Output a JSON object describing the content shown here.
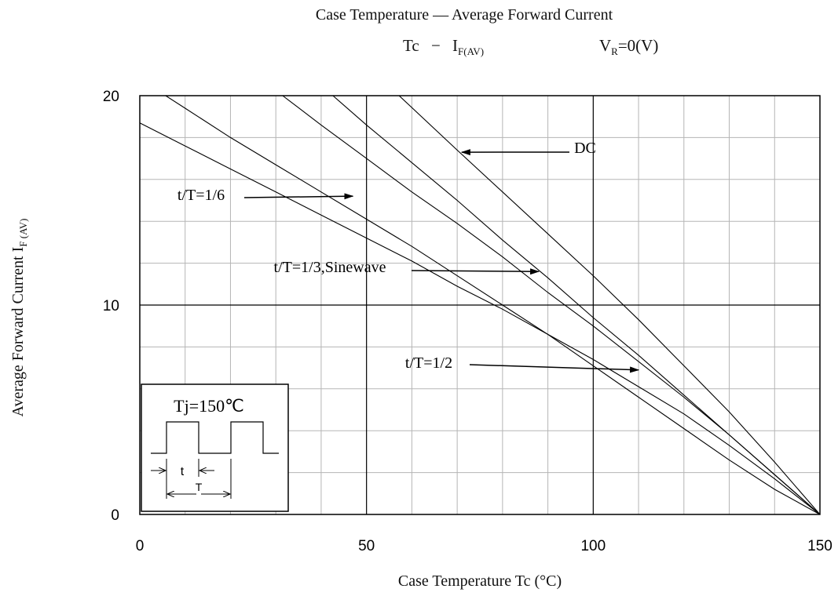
{
  "chart_data": {
    "type": "line",
    "title": "Case Temperature — Average Forward Current",
    "subtitle": {
      "left": "Tc",
      "dash": "−",
      "i_main": "I",
      "i_sub": "F(AV)",
      "v_main": "V",
      "v_sub": "R",
      "v_rest": "=0(V)"
    },
    "xlabel": "Case Temperature Tc (°C)",
    "ylabel_main": "Average Forward Current I",
    "ylabel_sub": "F (AV)",
    "xlim": [
      0,
      150
    ],
    "ylim": [
      0,
      20
    ],
    "xticks": [
      0,
      50,
      100,
      150
    ],
    "yticks": [
      0,
      10,
      20
    ],
    "grid": true,
    "series": [
      {
        "name": "DC",
        "x": [
          57.2,
          70,
          80,
          90,
          100,
          110,
          120,
          130,
          140,
          150
        ],
        "y": [
          20,
          17.4,
          15.4,
          13.4,
          11.4,
          9.3,
          7.1,
          4.9,
          2.5,
          0
        ]
      },
      {
        "name": "t/T=1/3,Sinewave",
        "x": [
          42.6,
          50,
          60,
          70,
          80,
          90,
          100,
          110,
          120,
          130,
          140,
          150
        ],
        "y": [
          20,
          18.6,
          16.8,
          15.0,
          13.1,
          11.3,
          9.4,
          7.6,
          5.7,
          3.8,
          1.9,
          0
        ]
      },
      {
        "name": "t/T=1/2",
        "x": [
          31.5,
          40,
          50,
          60,
          70,
          80,
          90,
          100,
          110,
          120,
          130,
          140,
          150
        ],
        "y": [
          20,
          18.6,
          17.0,
          15.4,
          13.9,
          12.3,
          10.6,
          9.0,
          7.3,
          5.6,
          3.8,
          1.9,
          0
        ]
      },
      {
        "name": "",
        "x": [
          0,
          10,
          20,
          30,
          40,
          50,
          60,
          70,
          80,
          90,
          100,
          110,
          120,
          130,
          140,
          150
        ],
        "y": [
          18.7,
          17.6,
          16.5,
          15.4,
          14.3,
          13.2,
          12.1,
          10.9,
          9.8,
          8.6,
          7.4,
          6.1,
          4.8,
          3.3,
          1.7,
          0
        ]
      },
      {
        "name": "t/T=1/6",
        "x": [
          5.7,
          10,
          20,
          30,
          40,
          50,
          60,
          70,
          80,
          90,
          100,
          110,
          120,
          130,
          140,
          150
        ],
        "y": [
          20,
          19.4,
          18.0,
          16.7,
          15.4,
          14.1,
          12.8,
          11.4,
          10.0,
          8.6,
          7.1,
          5.6,
          4.1,
          2.6,
          1.2,
          0
        ]
      }
    ],
    "annotations": [
      {
        "text": "DC",
        "arrow_to": [
          71,
          17.3
        ]
      },
      {
        "text": "t/T=1/6",
        "arrow_to": [
          47,
          15.2
        ]
      },
      {
        "text": "t/T=1/3,Sinewave",
        "arrow_to": [
          88,
          11.6
        ]
      },
      {
        "text": "t/T=1/2",
        "arrow_to": [
          110,
          6.9
        ]
      }
    ],
    "inset": {
      "label": "Tj=150℃",
      "t_label": "t",
      "T_label": "T"
    }
  }
}
